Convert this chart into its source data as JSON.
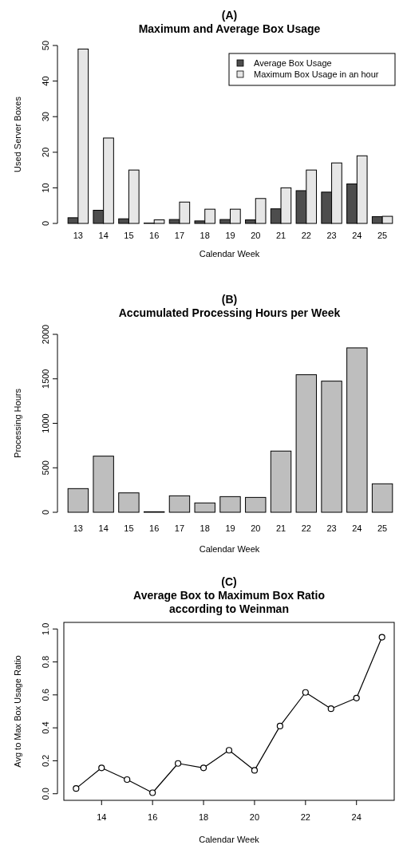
{
  "chart_data": [
    {
      "type": "bar",
      "title": "(A)\nMaximum and Average Box Usage",
      "xlabel": "Calendar Week",
      "ylabel": "Used Server Boxes",
      "categories": [
        "13",
        "14",
        "15",
        "16",
        "17",
        "18",
        "19",
        "20",
        "21",
        "22",
        "23",
        "24",
        "25"
      ],
      "series": [
        {
          "name": "Average Box Usage",
          "color": "#4d4d4d",
          "values": [
            1.6,
            3.7,
            1.3,
            0.1,
            1.1,
            0.7,
            1.1,
            1.0,
            4.1,
            9.2,
            8.8,
            11.1,
            1.9
          ]
        },
        {
          "name": "Maximum Box Usage in an hour",
          "color": "#e6e6e6",
          "values": [
            49,
            24,
            15,
            1,
            6,
            4,
            4,
            7,
            10,
            15,
            17,
            19,
            2
          ]
        }
      ],
      "ylim": [
        0,
        50
      ],
      "yticks": [
        0,
        10,
        20,
        30,
        40,
        50
      ],
      "legend": "top right"
    },
    {
      "type": "bar",
      "title": "(B)\nAccumulated Processing Hours per Week",
      "xlabel": "Calendar Week",
      "ylabel": "Processing Hours",
      "categories": [
        "13",
        "14",
        "15",
        "16",
        "17",
        "18",
        "19",
        "20",
        "21",
        "22",
        "23",
        "24",
        "25"
      ],
      "values": [
        266,
        631,
        218,
        6,
        185,
        105,
        176,
        167,
        688,
        1546,
        1474,
        1848,
        320
      ],
      "color": "#bebebe",
      "ylim": [
        0,
        2000
      ],
      "yticks": [
        0,
        500,
        1000,
        1500,
        2000
      ]
    },
    {
      "type": "line",
      "title": "(C)\nAverage Box to Maximum Box Ratio\naccording to Weinman",
      "xlabel": "Calendar Week",
      "ylabel": "Avg to Max Box Usage Ratio",
      "x": [
        13,
        14,
        15,
        16,
        17,
        18,
        19,
        20,
        21,
        22,
        23,
        24,
        25
      ],
      "values": [
        0.032,
        0.157,
        0.086,
        0.006,
        0.184,
        0.157,
        0.264,
        0.142,
        0.411,
        0.615,
        0.516,
        0.581,
        0.95
      ],
      "color": "#000000",
      "marker": "circle",
      "xlim": [
        12.52,
        25.48
      ],
      "xticks": [
        14,
        16,
        18,
        20,
        22,
        24
      ],
      "ylim": [
        -0.04,
        1.04
      ],
      "yticks": [
        {
          "value": 0,
          "label": "0.0"
        },
        0.2,
        0.4,
        0.6,
        0.8,
        {
          "value": 1,
          "label": "1.0"
        }
      ]
    }
  ]
}
